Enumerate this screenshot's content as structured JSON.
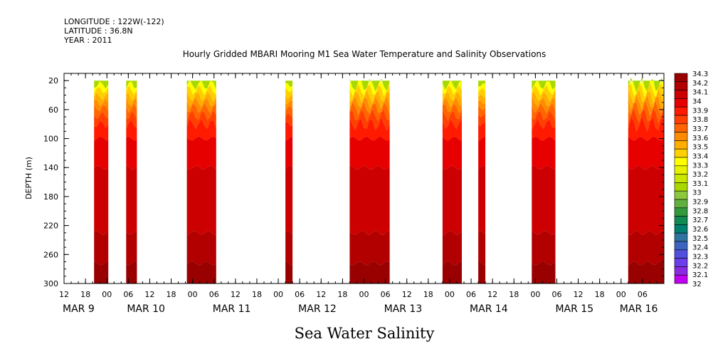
{
  "header": {
    "longitude": "LONGITUDE : 122W(-122)",
    "latitude": "LATITUDE : 36.8N",
    "year": "YEAR : 2011"
  },
  "chart_data": {
    "type": "heatmap",
    "title": "Hourly Gridded MBARI Mooring M1 Sea Water Temperature and Salinity Observations",
    "subtitle": "Sea Water Salinity",
    "ylabel": "DEPTH (m)",
    "xlabel": "",
    "y_axis": {
      "ylim": [
        300,
        10
      ],
      "inverted": true,
      "ticks": [
        20,
        60,
        100,
        140,
        180,
        220,
        260,
        300
      ]
    },
    "x_axis": {
      "unit": "hours since MAR 8 12:00",
      "xlim": [
        0,
        84
      ],
      "hour_ticks": [
        {
          "t": 0,
          "label": "12"
        },
        {
          "t": 3,
          "label": "18"
        },
        {
          "t": 6,
          "label": "00"
        },
        {
          "t": 9,
          "label": "06"
        },
        {
          "t": 12,
          "label": "12"
        },
        {
          "t": 15,
          "label": "18"
        },
        {
          "t": 18,
          "label": "00"
        },
        {
          "t": 21,
          "label": "06"
        },
        {
          "t": 24,
          "label": "12"
        },
        {
          "t": 27,
          "label": "18"
        },
        {
          "t": 30,
          "label": "00"
        },
        {
          "t": 33,
          "label": "06"
        },
        {
          "t": 36,
          "label": "12"
        },
        {
          "t": 39,
          "label": "18"
        },
        {
          "t": 42,
          "label": "00"
        },
        {
          "t": 45,
          "label": "06"
        },
        {
          "t": 48,
          "label": "12"
        },
        {
          "t": 51,
          "label": "18"
        },
        {
          "t": 54,
          "label": "00"
        },
        {
          "t": 57,
          "label": "06"
        },
        {
          "t": 60,
          "label": "12"
        },
        {
          "t": 63,
          "label": "18"
        },
        {
          "t": 66,
          "label": "00"
        },
        {
          "t": 69,
          "label": "06"
        },
        {
          "t": 72,
          "label": "12"
        },
        {
          "t": 75,
          "label": "18"
        },
        {
          "t": 78,
          "label": "00"
        },
        {
          "t": 81,
          "label": "06"
        }
      ],
      "date_labels": [
        {
          "t": 0,
          "label": "MAR  9"
        },
        {
          "t": 9,
          "label": "MAR 10"
        },
        {
          "t": 21,
          "label": "MAR 11"
        },
        {
          "t": 33,
          "label": "MAR 12"
        },
        {
          "t": 45,
          "label": "MAR 13"
        },
        {
          "t": 57,
          "label": "MAR 14"
        },
        {
          "t": 69,
          "label": "MAR 15"
        },
        {
          "t": 78,
          "label": "MAR 16"
        }
      ]
    },
    "data_segments": [
      {
        "start": 4.2,
        "end": 6.2,
        "fresh": 0.7,
        "wave": 0.15
      },
      {
        "start": 8.7,
        "end": 10.2,
        "fresh": 0.7,
        "wave": 0.2
      },
      {
        "start": 17.2,
        "end": 21.3,
        "fresh": 0.8,
        "wave": 0.2
      },
      {
        "start": 31.0,
        "end": 32.0,
        "fresh": 0.6,
        "wave": 0.1
      },
      {
        "start": 40.0,
        "end": 45.6,
        "fresh": 1.0,
        "wave": 0.2
      },
      {
        "start": 53.0,
        "end": 55.7,
        "fresh": 0.8,
        "wave": 0.2
      },
      {
        "start": 58.0,
        "end": 59.0,
        "fresh": 0.5,
        "wave": 0.1
      },
      {
        "start": 65.5,
        "end": 68.8,
        "fresh": 0.8,
        "wave": 0.2
      },
      {
        "start": 79.0,
        "end": 84.0,
        "fresh": 0.9,
        "wave": 0.3
      }
    ],
    "colorbar": {
      "levels": [
        "34.3",
        "34.2",
        "34.1",
        "34",
        "33.9",
        "33.8",
        "33.7",
        "33.6",
        "33.5",
        "33.4",
        "33.3",
        "33.2",
        "33.1",
        "33",
        "32.9",
        "32.8",
        "32.7",
        "32.6",
        "32.5",
        "32.4",
        "32.3",
        "32.2",
        "32.1",
        "32"
      ],
      "colors": [
        "#990000",
        "#b20000",
        "#cc0000",
        "#e60000",
        "#ff1a00",
        "#ff4000",
        "#ff6600",
        "#ff8c00",
        "#ffad00",
        "#ffd000",
        "#ffff00",
        "#e6f200",
        "#c8e600",
        "#a8d800",
        "#8cc83c",
        "#60b040",
        "#329a3c",
        "#108a50",
        "#00806e",
        "#2e74a0",
        "#3c64c0",
        "#5050dc",
        "#6a3ee8",
        "#8a2be2",
        "#c000f0"
      ]
    }
  }
}
